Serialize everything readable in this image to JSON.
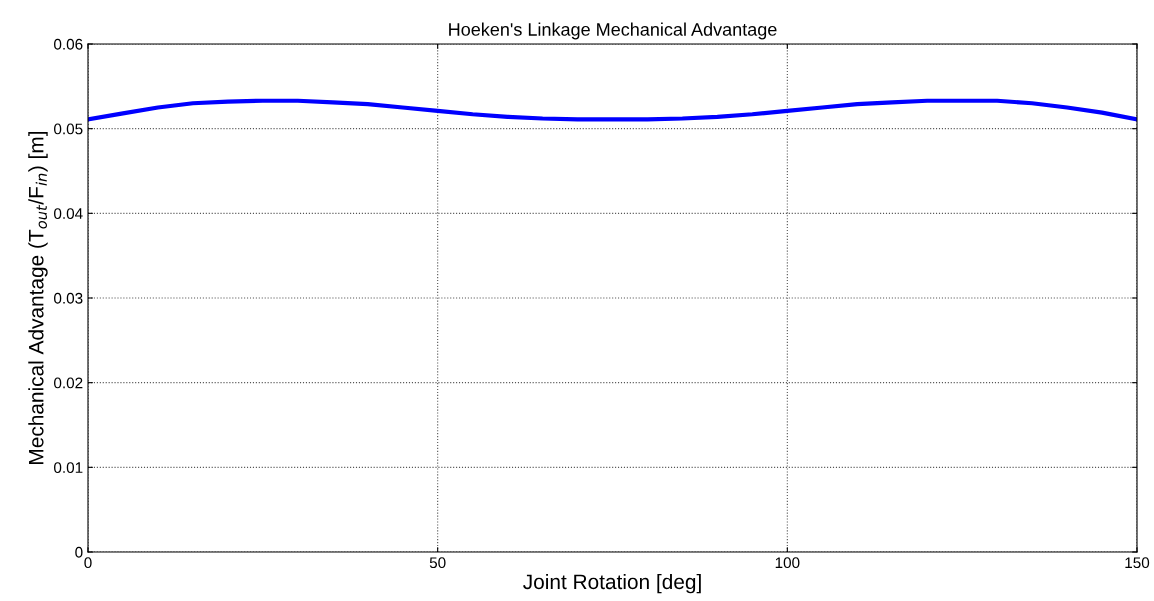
{
  "chart_data": {
    "type": "line",
    "title": "Hoeken's Linkage Mechanical Advantage",
    "xlabel": "Joint Rotation [deg]",
    "ylabel": "Mechanical Advantage (T$_{out}$/F$_{in}$) [m]",
    "x": [
      0,
      5,
      10,
      15,
      20,
      25,
      30,
      35,
      40,
      45,
      50,
      55,
      60,
      65,
      70,
      75,
      80,
      85,
      90,
      95,
      100,
      105,
      110,
      115,
      120,
      125,
      130,
      135,
      140,
      145,
      150
    ],
    "series": [
      {
        "color": "#0000ff",
        "values": [
          0.0511,
          0.0518,
          0.0525,
          0.053,
          0.0532,
          0.0533,
          0.0533,
          0.0531,
          0.0529,
          0.0525,
          0.0521,
          0.0517,
          0.0514,
          0.0512,
          0.0511,
          0.0511,
          0.0511,
          0.0512,
          0.0514,
          0.0517,
          0.0521,
          0.0525,
          0.0529,
          0.0531,
          0.0533,
          0.0533,
          0.0533,
          0.053,
          0.0525,
          0.0519,
          0.0511
        ]
      }
    ],
    "xlim": [
      0,
      150
    ],
    "xticks": [
      0,
      50,
      100,
      150
    ],
    "ylim": [
      0,
      0.06
    ],
    "yticks": [
      0,
      0.01,
      0.02,
      0.03,
      0.04,
      0.05,
      0.06
    ],
    "grid": true,
    "line_style": "solid",
    "marker": "none"
  }
}
